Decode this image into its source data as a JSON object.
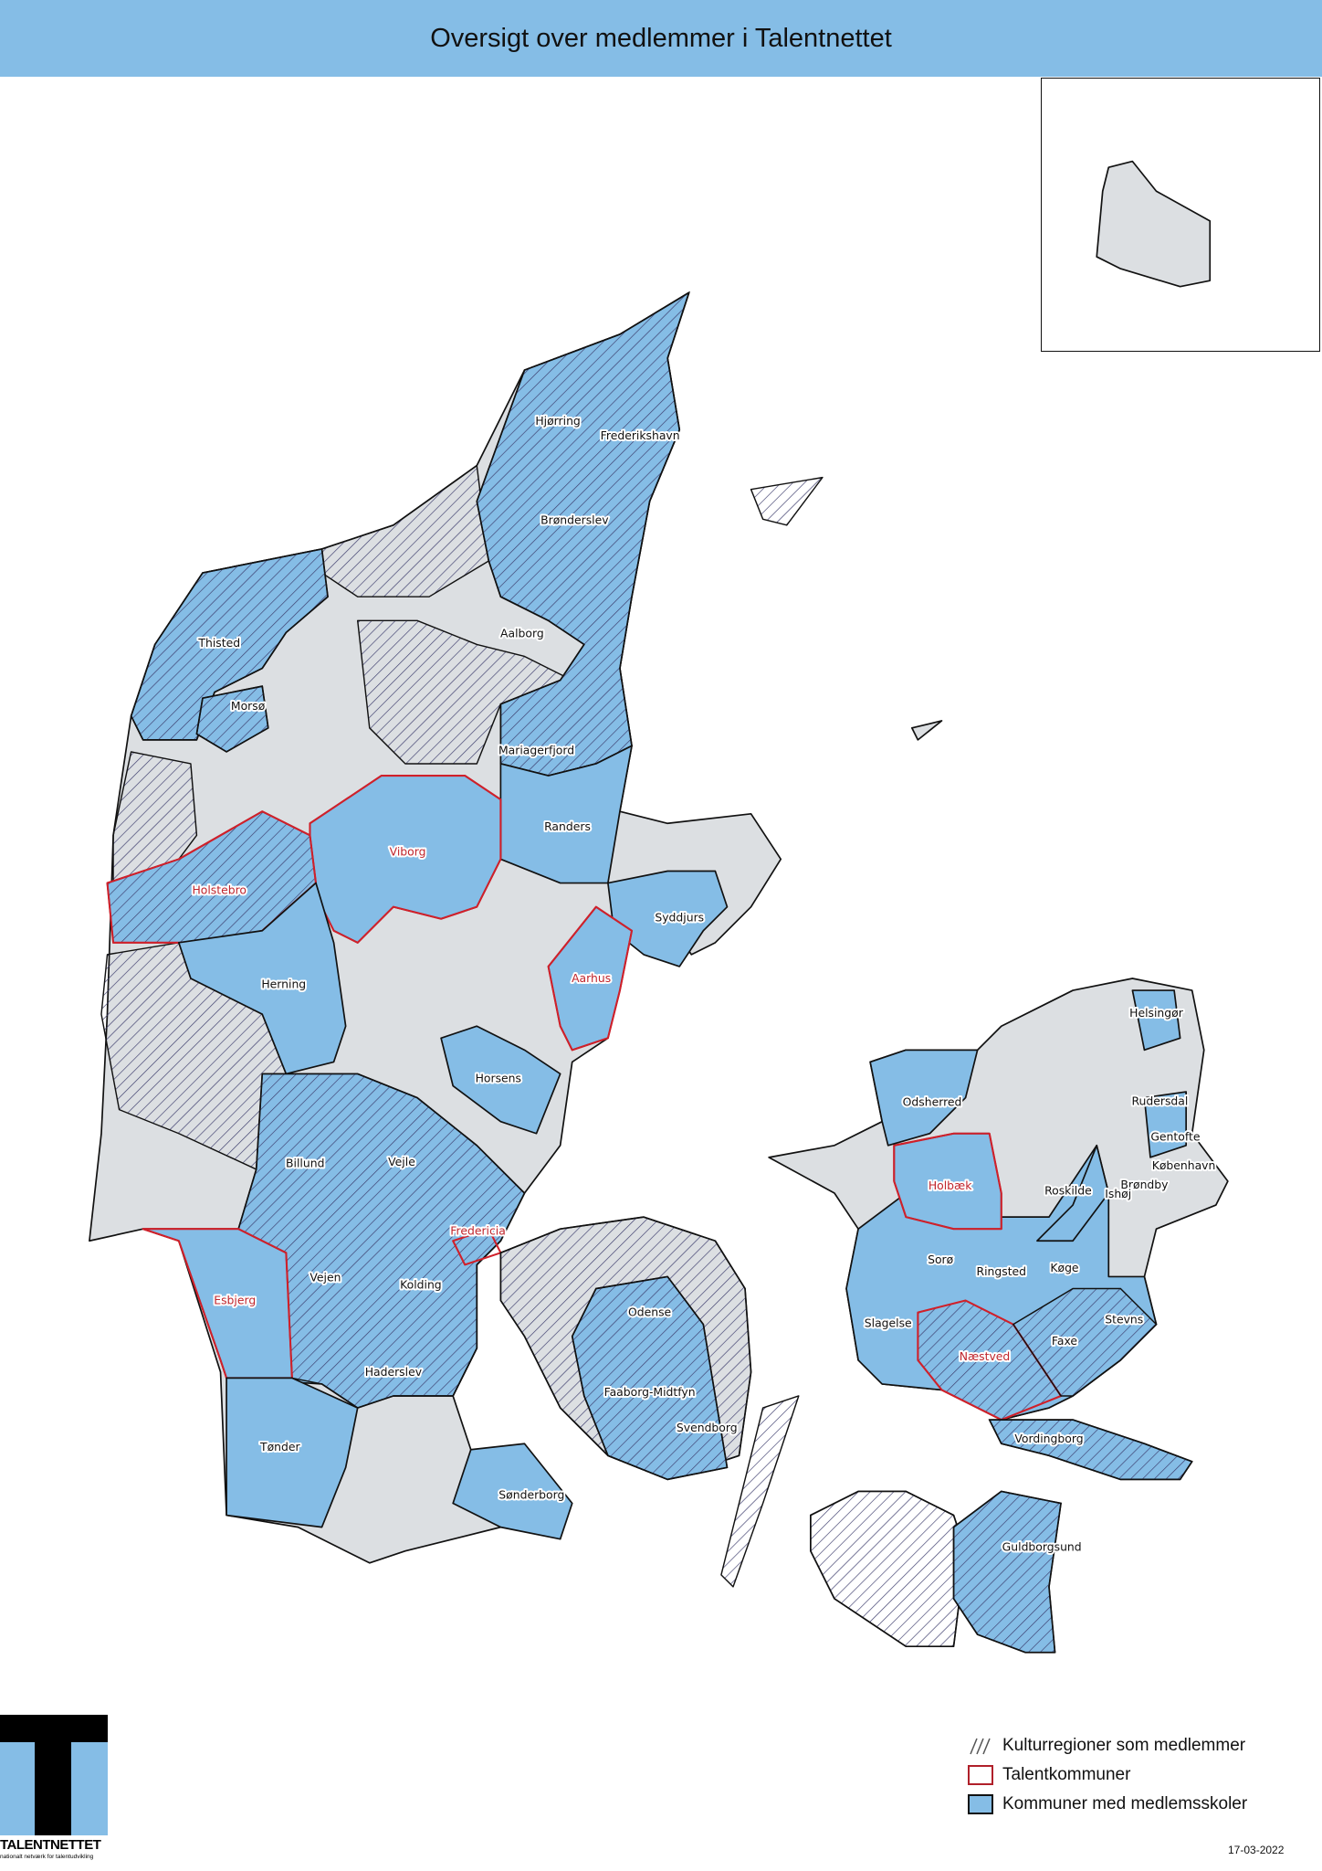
{
  "title": "Oversigt over medlemmer i Talentnettet",
  "colors": {
    "title_bar": "#85bde6",
    "member_fill": "#85bde6",
    "land_fill": "#dcdfe2",
    "talent_outline": "#d0202a",
    "hatch": "#3b3b6b"
  },
  "legend": [
    {
      "label": "Kulturregioner som medlemmer",
      "symbol": "hatch"
    },
    {
      "label": "Talentkommuner",
      "symbol": "red-outline"
    },
    {
      "label": "Kommuner med medlemsskoler",
      "symbol": "blue-fill"
    }
  ],
  "municipalities": [
    {
      "name": "Hjørring",
      "talent": false
    },
    {
      "name": "Frederikshavn",
      "talent": false
    },
    {
      "name": "Brønderslev",
      "talent": false
    },
    {
      "name": "Thisted",
      "talent": false
    },
    {
      "name": "Aalborg",
      "talent": false
    },
    {
      "name": "Morsø",
      "talent": false
    },
    {
      "name": "Mariagerfjord",
      "talent": false
    },
    {
      "name": "Randers",
      "talent": false
    },
    {
      "name": "Viborg",
      "talent": true
    },
    {
      "name": "Holstebro",
      "talent": true
    },
    {
      "name": "Syddjurs",
      "talent": false
    },
    {
      "name": "Herning",
      "talent": false
    },
    {
      "name": "Aarhus",
      "talent": true
    },
    {
      "name": "Horsens",
      "talent": false
    },
    {
      "name": "Helsingør",
      "talent": false
    },
    {
      "name": "Odsherred",
      "talent": false
    },
    {
      "name": "Rudersdal",
      "talent": false
    },
    {
      "name": "Gentofte",
      "talent": false
    },
    {
      "name": "København",
      "talent": false
    },
    {
      "name": "Billund",
      "talent": false
    },
    {
      "name": "Vejle",
      "talent": false
    },
    {
      "name": "Holbæk",
      "talent": true
    },
    {
      "name": "Roskilde",
      "talent": false
    },
    {
      "name": "Brøndby",
      "talent": false
    },
    {
      "name": "Ishøj",
      "talent": false
    },
    {
      "name": "Fredericia",
      "talent": true
    },
    {
      "name": "Sorø",
      "talent": false
    },
    {
      "name": "Ringsted",
      "talent": false
    },
    {
      "name": "Køge",
      "talent": false
    },
    {
      "name": "Vejen",
      "talent": false
    },
    {
      "name": "Kolding",
      "talent": false
    },
    {
      "name": "Esbjerg",
      "talent": true
    },
    {
      "name": "Odense",
      "talent": false
    },
    {
      "name": "Slagelse",
      "talent": false
    },
    {
      "name": "Stevns",
      "talent": false
    },
    {
      "name": "Næstved",
      "talent": true
    },
    {
      "name": "Faxe",
      "talent": false
    },
    {
      "name": "Haderslev",
      "talent": false
    },
    {
      "name": "Faaborg-Midtfyn",
      "talent": false
    },
    {
      "name": "Svendborg",
      "talent": false
    },
    {
      "name": "Vordingborg",
      "talent": false
    },
    {
      "name": "Tønder",
      "talent": false
    },
    {
      "name": "Sønderborg",
      "talent": false
    },
    {
      "name": "Guldborgsund",
      "talent": false
    }
  ],
  "logo": {
    "name": "TALENTNETTET",
    "tagline": "nationalt netværk for talentudvikling"
  },
  "date": "17-03-2022"
}
